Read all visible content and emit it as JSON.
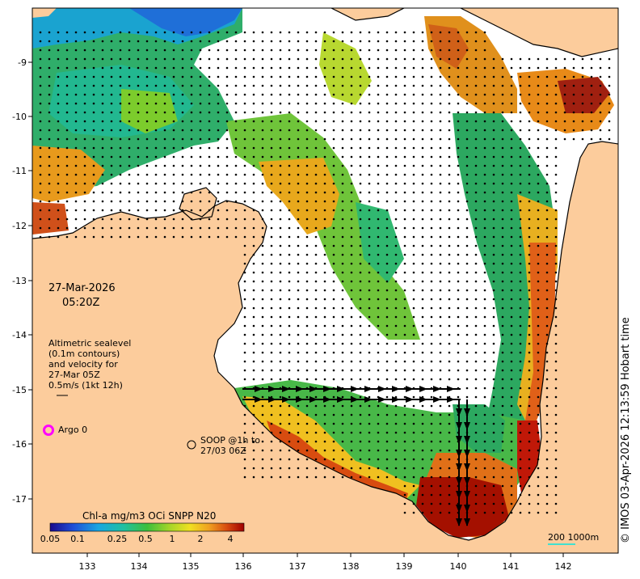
{
  "map": {
    "lon_ticks": [
      "133",
      "134",
      "135",
      "136",
      "137",
      "138",
      "139",
      "140",
      "141",
      "142"
    ],
    "lat_ticks": [
      "-9",
      "-10",
      "-11",
      "-12",
      "-13",
      "-14",
      "-15",
      "-16",
      "-17"
    ],
    "date": "27-Mar-2026",
    "time": "05:20Z",
    "legend_lines": [
      "Altimetric sealevel",
      "(0.1m contours)",
      "and velocity for",
      "27-Mar 05Z",
      "0.5m/s (1kt 12h)"
    ],
    "argo_label": "Argo 0",
    "soop_line1": "SOOP @1h to",
    "soop_line2": "27/03 06Z",
    "colorbar_title": "Chl-a mg/m3 OCi SNPP N20",
    "colorbar_ticks": [
      "0.05",
      "0.1",
      "0.25",
      "0.5",
      "1",
      "2",
      "4"
    ],
    "scale_label": "200  1000m",
    "credit": "© IMOS 03-Apr-2026 12:13:59 Hobart time",
    "colors": {
      "land": "#fccc9c",
      "argo": "#ff00ff",
      "scale_line": "#40e0d0"
    }
  }
}
